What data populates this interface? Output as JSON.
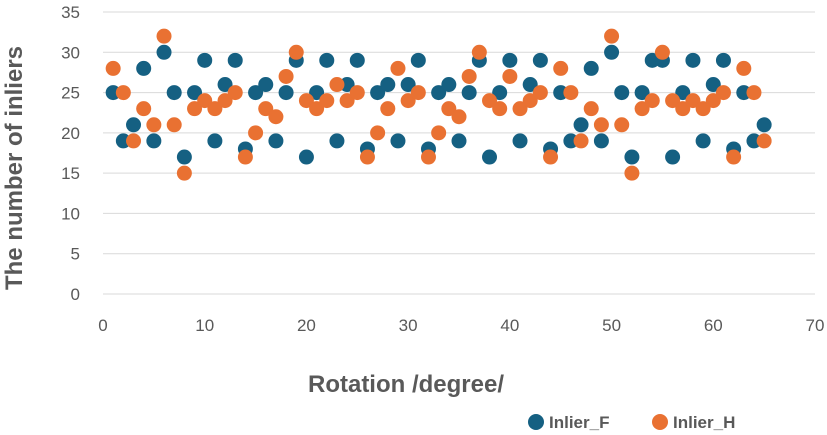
{
  "chart_data": {
    "type": "scatter",
    "title": "",
    "xlabel": "Rotation /degree/",
    "ylabel": "The number of inliers",
    "xlim": [
      0,
      70
    ],
    "ylim": [
      0,
      35
    ],
    "xticks": [
      0,
      10,
      20,
      30,
      40,
      50,
      60,
      70
    ],
    "yticks": [
      0,
      5,
      10,
      15,
      20,
      25,
      30,
      35
    ],
    "grid": true,
    "legend_position": "bottom-right",
    "series": [
      {
        "name": "Inlier_F",
        "color": "#156082",
        "x": [
          1,
          2,
          3,
          4,
          5,
          6,
          7,
          8,
          9,
          10,
          11,
          12,
          13,
          14,
          15,
          16,
          17,
          18,
          19,
          20,
          21,
          22,
          23,
          24,
          25,
          26,
          27,
          28,
          29,
          30,
          31,
          32,
          33,
          34,
          35,
          36,
          37,
          38,
          39,
          40,
          41,
          42,
          43,
          44,
          45,
          46,
          47,
          48,
          49,
          50,
          51,
          52,
          53,
          54,
          55,
          56,
          57,
          58,
          59,
          60,
          61,
          62,
          63,
          64,
          65
        ],
        "y": [
          25,
          19,
          21,
          28,
          19,
          30,
          25,
          17,
          25,
          29,
          19,
          26,
          29,
          18,
          25,
          26,
          19,
          25,
          29,
          17,
          25,
          29,
          19,
          26,
          29,
          18,
          25,
          26,
          19,
          26,
          29,
          18,
          25,
          26,
          19,
          25,
          29,
          17,
          25,
          29,
          19,
          26,
          29,
          18,
          25,
          19,
          21,
          28,
          19,
          30,
          25,
          17,
          25,
          29,
          29,
          17,
          25,
          29,
          19,
          26,
          29,
          18,
          25,
          19,
          21
        ]
      },
      {
        "name": "Inlier_H",
        "color": "#e97132",
        "x": [
          1,
          2,
          3,
          4,
          5,
          6,
          7,
          8,
          9,
          10,
          11,
          12,
          13,
          14,
          15,
          16,
          17,
          18,
          19,
          20,
          21,
          22,
          23,
          24,
          25,
          26,
          27,
          28,
          29,
          30,
          31,
          32,
          33,
          34,
          35,
          36,
          37,
          38,
          39,
          40,
          41,
          42,
          43,
          44,
          45,
          46,
          47,
          48,
          49,
          50,
          51,
          52,
          53,
          54,
          55,
          56,
          57,
          58,
          59,
          60,
          61,
          62,
          63,
          64,
          65
        ],
        "y": [
          28,
          25,
          19,
          23,
          21,
          32,
          21,
          15,
          23,
          24,
          23,
          24,
          25,
          17,
          20,
          23,
          22,
          27,
          30,
          24,
          23,
          24,
          26,
          24,
          25,
          17,
          20,
          23,
          28,
          24,
          25,
          17,
          20,
          23,
          22,
          27,
          30,
          24,
          23,
          27,
          23,
          24,
          25,
          17,
          28,
          25,
          19,
          23,
          21,
          32,
          21,
          15,
          23,
          24,
          30,
          24,
          23,
          24,
          23,
          24,
          25,
          17,
          28,
          25,
          19
        ]
      }
    ]
  }
}
